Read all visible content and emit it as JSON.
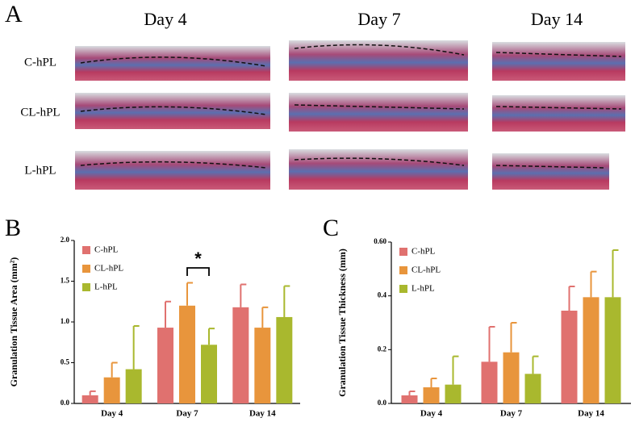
{
  "panel_a": {
    "panel_label": "A",
    "columns": [
      "Day 4",
      "Day 7",
      "Day 14"
    ],
    "rows": [
      "C-hPL",
      "CL-hPL",
      "L-hPL"
    ]
  },
  "chart_data": [
    {
      "type": "bar",
      "panel_label": "B",
      "ylabel": "Granulation Tissue Area (mm²)",
      "categories": [
        "Day 4",
        "Day 7",
        "Day 14"
      ],
      "series": [
        {
          "name": "C-hPL",
          "color": "#e0716f",
          "values": [
            0.1,
            0.93,
            1.18
          ],
          "errors": [
            0.05,
            0.32,
            0.28
          ]
        },
        {
          "name": "CL-hPL",
          "color": "#e8953c",
          "values": [
            0.32,
            1.2,
            0.93
          ],
          "errors": [
            0.18,
            0.28,
            0.25
          ]
        },
        {
          "name": "L-hPL",
          "color": "#a9b82e",
          "values": [
            0.42,
            0.72,
            1.06
          ],
          "errors": [
            0.53,
            0.2,
            0.38
          ]
        }
      ],
      "ylim": [
        0,
        2.0
      ],
      "yticks": [
        {
          "value": 0,
          "label": "0.0"
        },
        0.5,
        {
          "value": 1.0,
          "label": "1.0"
        },
        1.5,
        {
          "value": 2.0,
          "label": "2.0"
        }
      ],
      "annotation": "*",
      "legend": "upper left"
    },
    {
      "type": "bar",
      "panel_label": "C",
      "ylabel": "Granulation Tissue Thickness (mm)",
      "categories": [
        "Day 4",
        "Day 7",
        "Day 14"
      ],
      "series": [
        {
          "name": "C-hPL",
          "color": "#e0716f",
          "values": [
            0.03,
            0.155,
            0.345
          ],
          "errors": [
            0.015,
            0.13,
            0.09
          ]
        },
        {
          "name": "CL-hPL",
          "color": "#e8953c",
          "values": [
            0.06,
            0.19,
            0.395
          ],
          "errors": [
            0.033,
            0.11,
            0.095
          ]
        },
        {
          "name": "L-hPL",
          "color": "#a9b82e",
          "values": [
            0.07,
            0.11,
            0.395
          ],
          "errors": [
            0.105,
            0.065,
            0.175
          ]
        }
      ],
      "ylim": [
        0,
        0.6
      ],
      "yticks": [
        {
          "value": 0,
          "label": "0.0"
        },
        0.2,
        0.4,
        {
          "value": 0.6,
          "label": "0.60"
        }
      ],
      "legend": "upper left"
    }
  ]
}
